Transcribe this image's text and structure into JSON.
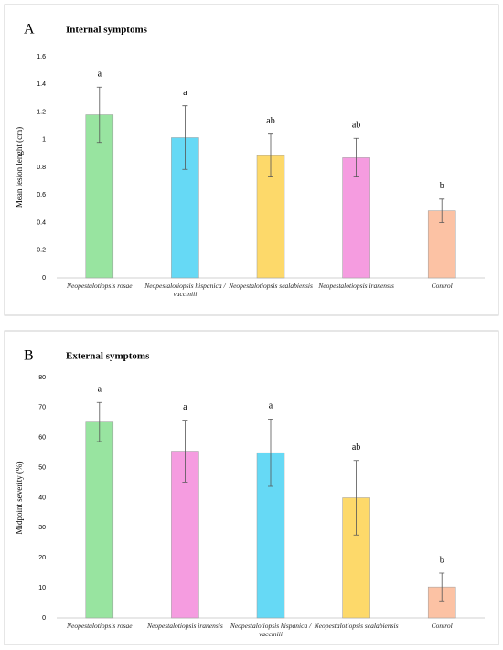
{
  "chart_data": [
    {
      "type": "bar",
      "panel_label": "A",
      "title": "Internal symptoms",
      "ylabel": "Mean lesion lenght (cm)",
      "categories": [
        "Neopestalotiopsis rosae",
        "Neopestalotiopsis hispanica / vacciniii",
        "Neopestalotiopsis scalabiensis",
        "Neopestalotiopsis iranensis",
        "Control"
      ],
      "values": [
        1.18,
        1.015,
        0.885,
        0.87,
        0.485
      ],
      "errors": [
        0.2,
        0.23,
        0.155,
        0.14,
        0.085
      ],
      "letters": [
        "a",
        "a",
        "ab",
        "ab",
        "b"
      ],
      "colors": [
        "#98e4a0",
        "#66d9f5",
        "#fdd96a",
        "#f59ce0",
        "#fcc2a4"
      ],
      "ylim": [
        0,
        1.6
      ],
      "yticks": [
        0,
        0.2,
        0.4,
        0.6,
        0.8,
        1,
        1.2,
        1.4,
        1.6
      ]
    },
    {
      "type": "bar",
      "panel_label": "B",
      "title": "External symptoms",
      "ylabel": "Midpoint severity (%)",
      "categories": [
        "Neopestalotiopsis rosae",
        "Neopestalotiopsis iranensis",
        "Neopestalotiopsis hispanica / vacciniii",
        "Neopestalotiopsis scalabiensis",
        "Control"
      ],
      "values": [
        65.2,
        55.5,
        55,
        40,
        10.3
      ],
      "errors": [
        6.5,
        10.3,
        11.2,
        12.4,
        4.6
      ],
      "letters": [
        "a",
        "a",
        "a",
        "ab",
        "b"
      ],
      "colors": [
        "#98e4a0",
        "#f59ce0",
        "#66d9f5",
        "#fdd96a",
        "#fcc2a4"
      ],
      "ylim": [
        0,
        80
      ],
      "yticks": [
        0,
        10,
        20,
        30,
        40,
        50,
        60,
        70,
        80
      ]
    }
  ]
}
